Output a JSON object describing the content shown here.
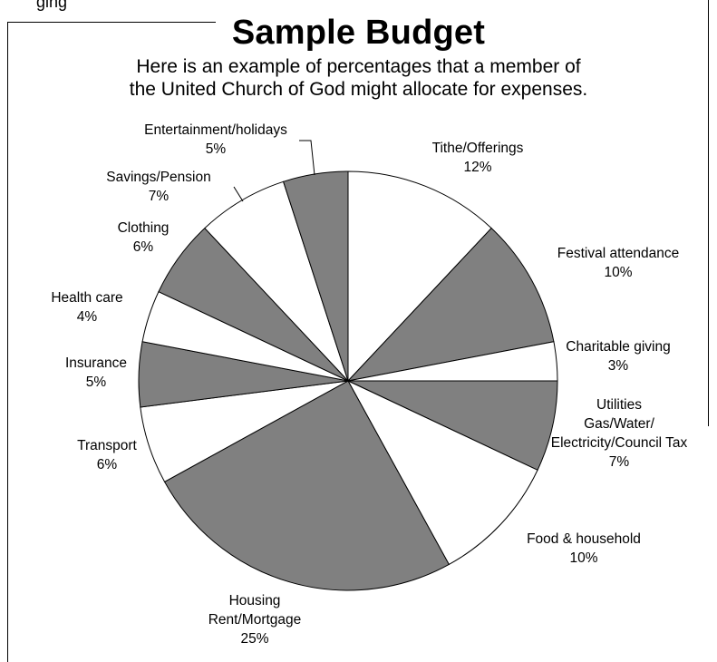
{
  "header_partial": "ging",
  "chart_data": {
    "type": "pie",
    "title": "Sample Budget",
    "subtitle_lines": [
      "Here is an example of percentages that a member of",
      "the United Church of God might allocate for expenses."
    ],
    "slices": [
      {
        "label_lines": [
          "Tithe/Offerings"
        ],
        "value": 12,
        "value_label": "12%",
        "fill": "#ffffff"
      },
      {
        "label_lines": [
          "Festival attendance"
        ],
        "value": 10,
        "value_label": "10%",
        "fill": "#808080"
      },
      {
        "label_lines": [
          "Charitable giving"
        ],
        "value": 3,
        "value_label": "3%",
        "fill": "#ffffff"
      },
      {
        "label_lines": [
          "Utilities",
          "Gas/Water/",
          "Electricity/Council Tax"
        ],
        "value": 7,
        "value_label": "7%",
        "fill": "#808080"
      },
      {
        "label_lines": [
          "Food & household"
        ],
        "value": 10,
        "value_label": "10%",
        "fill": "#ffffff"
      },
      {
        "label_lines": [
          "Housing",
          "Rent/Mortgage"
        ],
        "value": 25,
        "value_label": "25%",
        "fill": "#808080"
      },
      {
        "label_lines": [
          "Transport"
        ],
        "value": 6,
        "value_label": "6%",
        "fill": "#ffffff"
      },
      {
        "label_lines": [
          "Insurance"
        ],
        "value": 5,
        "value_label": "5%",
        "fill": "#808080"
      },
      {
        "label_lines": [
          "Health care"
        ],
        "value": 4,
        "value_label": "4%",
        "fill": "#ffffff"
      },
      {
        "label_lines": [
          "Clothing"
        ],
        "value": 6,
        "value_label": "6%",
        "fill": "#808080"
      },
      {
        "label_lines": [
          "Savings/Pension"
        ],
        "value": 7,
        "value_label": "7%",
        "fill": "#ffffff"
      },
      {
        "label_lines": [
          "Entertainment/holidays"
        ],
        "value": 5,
        "value_label": "5%",
        "fill": "#808080"
      }
    ],
    "start_angle_deg": 0,
    "direction": "clockwise",
    "legend": "none",
    "colors": {
      "light": "#ffffff",
      "dark": "#808080",
      "stroke": "#000000"
    }
  }
}
